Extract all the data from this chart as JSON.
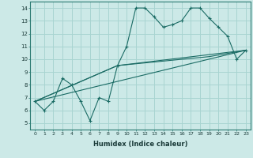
{
  "xlabel": "Humidex (Indice chaleur)",
  "xlim": [
    -0.5,
    23.5
  ],
  "ylim": [
    4.5,
    14.5
  ],
  "xticks": [
    0,
    1,
    2,
    3,
    4,
    5,
    6,
    7,
    8,
    9,
    10,
    11,
    12,
    13,
    14,
    15,
    16,
    17,
    18,
    19,
    20,
    21,
    22,
    23
  ],
  "yticks": [
    5,
    6,
    7,
    8,
    9,
    10,
    11,
    12,
    13,
    14
  ],
  "background_color": "#cce9e7",
  "grid_color": "#a8d4d1",
  "line_color": "#1a6b64",
  "line1_x": [
    0,
    1,
    2,
    3,
    4,
    5,
    6,
    7,
    8,
    9,
    10,
    11,
    12,
    13,
    14,
    15,
    16,
    17,
    18,
    19,
    20,
    21,
    22,
    23
  ],
  "line1_y": [
    6.7,
    6.0,
    6.7,
    8.5,
    8.0,
    6.7,
    5.2,
    7.0,
    6.7,
    9.5,
    11.0,
    14.0,
    14.0,
    13.3,
    12.5,
    12.7,
    13.0,
    14.0,
    14.0,
    13.2,
    12.5,
    11.8,
    10.0,
    10.7
  ],
  "line2_x": [
    0,
    23
  ],
  "line2_y": [
    6.7,
    10.7
  ],
  "line3_x": [
    0,
    9,
    23
  ],
  "line3_y": [
    6.7,
    9.5,
    10.7
  ],
  "line4_x": [
    0,
    9,
    19,
    23
  ],
  "line4_y": [
    6.7,
    9.5,
    10.2,
    10.7
  ]
}
